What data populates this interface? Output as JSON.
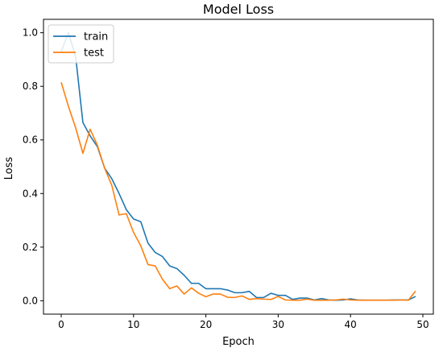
{
  "chart_data": {
    "type": "line",
    "title": "Model Loss",
    "xlabel": "Epoch",
    "ylabel": "Loss",
    "xlim": [
      -2.45,
      51.45
    ],
    "ylim": [
      -0.05,
      1.05
    ],
    "xticks": [
      0,
      10,
      20,
      30,
      40,
      50
    ],
    "yticks": [
      0.0,
      0.2,
      0.4,
      0.6,
      0.8,
      1.0
    ],
    "xtick_labels": [
      "0",
      "10",
      "20",
      "30",
      "40",
      "50"
    ],
    "ytick_labels": [
      "0.0",
      "0.2",
      "0.4",
      "0.6",
      "0.8",
      "1.0"
    ],
    "grid": false,
    "legend_position": "top-left",
    "x": [
      0,
      1,
      2,
      3,
      4,
      5,
      6,
      7,
      8,
      9,
      10,
      11,
      12,
      13,
      14,
      15,
      16,
      17,
      18,
      19,
      20,
      21,
      22,
      23,
      24,
      25,
      26,
      27,
      28,
      29,
      30,
      31,
      32,
      33,
      34,
      35,
      36,
      37,
      38,
      39,
      40,
      41,
      42,
      43,
      44,
      45,
      46,
      47,
      48,
      49
    ],
    "series": [
      {
        "name": "train",
        "color": "#1f77b4",
        "values": [
          0.93,
          1.0,
          0.91,
          0.665,
          0.615,
          0.575,
          0.495,
          0.455,
          0.4,
          0.34,
          0.305,
          0.295,
          0.215,
          0.18,
          0.165,
          0.13,
          0.12,
          0.095,
          0.065,
          0.065,
          0.045,
          0.045,
          0.045,
          0.04,
          0.03,
          0.03,
          0.035,
          0.012,
          0.012,
          0.028,
          0.02,
          0.02,
          0.005,
          0.01,
          0.01,
          0.003,
          0.008,
          0.003,
          0.002,
          0.003,
          0.007,
          0.003,
          0.002,
          0.002,
          0.002,
          0.002,
          0.003,
          0.003,
          0.003,
          0.016
        ]
      },
      {
        "name": "test",
        "color": "#ff7f0e",
        "values": [
          0.815,
          0.725,
          0.645,
          0.55,
          0.64,
          0.58,
          0.495,
          0.43,
          0.32,
          0.325,
          0.255,
          0.205,
          0.135,
          0.13,
          0.08,
          0.045,
          0.055,
          0.025,
          0.048,
          0.028,
          0.015,
          0.025,
          0.025,
          0.013,
          0.012,
          0.018,
          0.005,
          0.008,
          0.006,
          0.005,
          0.016,
          0.003,
          0.002,
          0.002,
          0.006,
          0.002,
          0.002,
          0.002,
          0.003,
          0.006,
          0.003,
          0.002,
          0.002,
          0.002,
          0.002,
          0.002,
          0.002,
          0.003,
          0.002,
          0.036
        ]
      }
    ]
  }
}
